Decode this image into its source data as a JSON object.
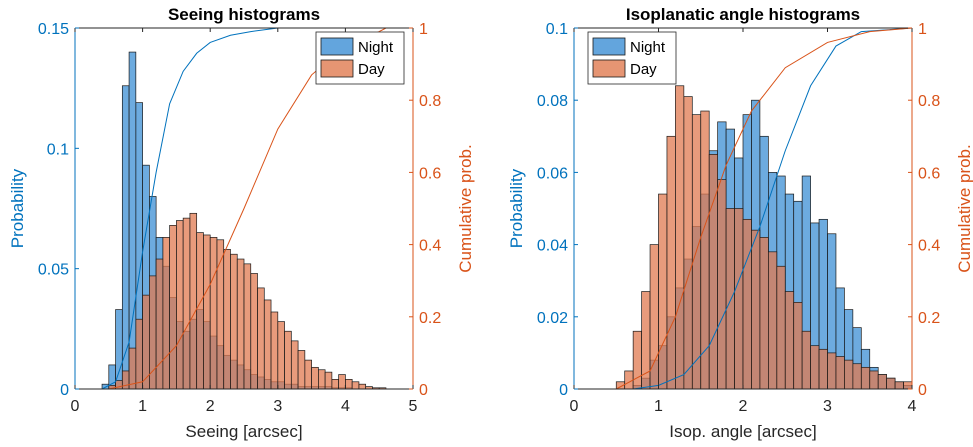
{
  "colors": {
    "night": "#0072BD",
    "day": "#D95319",
    "night_fill": "#3C8FD4",
    "day_fill": "#E07A50",
    "left_axis": "#0072BD",
    "right_axis": "#D95319"
  },
  "chart_data": [
    {
      "type": "bar",
      "title": "Seeing histograms",
      "xlabel": "Seeing [arcsec]",
      "ylabel": "Probability",
      "ylabel_right": "Cumulative prob.",
      "xlim": [
        0,
        5
      ],
      "ylim": [
        0,
        0.15
      ],
      "ylim_right": [
        0,
        1
      ],
      "xticks": [
        "0",
        "1",
        "2",
        "3",
        "4",
        "5"
      ],
      "yticks": [
        "0",
        "0.05",
        "0.1",
        "0.15"
      ],
      "yticks_right": [
        "0",
        "0.2",
        "0.4",
        "0.6",
        "0.8",
        "1"
      ],
      "legend": {
        "placement": "top-right",
        "entries": [
          "Night",
          "Day"
        ]
      },
      "grid": false,
      "bin_width": 0.1,
      "series": [
        {
          "name": "Night",
          "bin_start": 0.4,
          "values": [
            0.002,
            0.01,
            0.033,
            0.126,
            0.14,
            0.119,
            0.093,
            0.08,
            0.063,
            0.051,
            0.038,
            0.028,
            0.024,
            0.029,
            0.033,
            0.028,
            0.022,
            0.018,
            0.014,
            0.012,
            0.01,
            0.008,
            0.006,
            0.005,
            0.004,
            0.003,
            0.003,
            0.002,
            0.002,
            0.001,
            0.001,
            0.001,
            0.001,
            0.001,
            0.0005,
            0.0005,
            0.0005
          ],
          "cumulative": [
            [
              0.4,
              0
            ],
            [
              0.6,
              0.02
            ],
            [
              0.8,
              0.13
            ],
            [
              1.0,
              0.38
            ],
            [
              1.2,
              0.6
            ],
            [
              1.4,
              0.79
            ],
            [
              1.6,
              0.88
            ],
            [
              1.8,
              0.93
            ],
            [
              2.0,
              0.96
            ],
            [
              2.3,
              0.98
            ],
            [
              2.6,
              0.99
            ],
            [
              3.0,
              1.0
            ],
            [
              4.6,
              1.0
            ]
          ]
        },
        {
          "name": "Day",
          "bin_start": 0.5,
          "values": [
            0.0015,
            0.0035,
            0.0075,
            0.017,
            0.029,
            0.039,
            0.047,
            0.054,
            0.063,
            0.068,
            0.07,
            0.071,
            0.073,
            0.065,
            0.064,
            0.063,
            0.062,
            0.058,
            0.056,
            0.054,
            0.052,
            0.048,
            0.042,
            0.037,
            0.032,
            0.028,
            0.024,
            0.02,
            0.016,
            0.012,
            0.009,
            0.008,
            0.007,
            0.004,
            0.006,
            0.004,
            0.003,
            0.002,
            0.001,
            0.0005,
            0.0005
          ],
          "cumulative": [
            [
              0.5,
              0
            ],
            [
              1.0,
              0.02
            ],
            [
              1.5,
              0.12
            ],
            [
              2.0,
              0.29
            ],
            [
              2.5,
              0.5
            ],
            [
              3.0,
              0.72
            ],
            [
              3.5,
              0.87
            ],
            [
              4.0,
              0.95
            ],
            [
              4.5,
              0.99
            ],
            [
              4.6,
              1.0
            ]
          ]
        }
      ]
    },
    {
      "type": "bar",
      "title": "Isoplanatic angle histograms",
      "xlabel": "Isop. angle [arcsec]",
      "ylabel": "Probability",
      "ylabel_right": "Cumulative prob.",
      "xlim": [
        0,
        4
      ],
      "ylim": [
        0,
        0.1
      ],
      "ylim_right": [
        0,
        1
      ],
      "xticks": [
        "0",
        "1",
        "2",
        "3",
        "4"
      ],
      "yticks": [
        "0",
        "0.02",
        "0.04",
        "0.06",
        "0.08",
        "0.1"
      ],
      "yticks_right": [
        "0",
        "0.2",
        "0.4",
        "0.6",
        "0.8",
        "1"
      ],
      "legend": {
        "placement": "top-left",
        "entries": [
          "Night",
          "Day"
        ]
      },
      "grid": false,
      "bin_width": 0.1,
      "series": [
        {
          "name": "Night",
          "bin_start": 0.7,
          "values": [
            0.001,
            0.003,
            0.008,
            0.012,
            0.02,
            0.028,
            0.036,
            0.045,
            0.054,
            0.066,
            0.074,
            0.072,
            0.064,
            0.076,
            0.08,
            0.07,
            0.06,
            0.059,
            0.054,
            0.052,
            0.059,
            0.046,
            0.047,
            0.043,
            0.028,
            0.022,
            0.017,
            0.011,
            0.006,
            0.004,
            0.003,
            0.002,
            0.001
          ],
          "cumulative": [
            [
              0.7,
              0
            ],
            [
              1.0,
              0.01
            ],
            [
              1.3,
              0.04
            ],
            [
              1.6,
              0.12
            ],
            [
              1.9,
              0.27
            ],
            [
              2.2,
              0.45
            ],
            [
              2.5,
              0.66
            ],
            [
              2.8,
              0.84
            ],
            [
              3.1,
              0.95
            ],
            [
              3.4,
              0.99
            ],
            [
              4.0,
              1.0
            ]
          ]
        },
        {
          "name": "Day",
          "bin_start": 0.5,
          "values": [
            0.002,
            0.005,
            0.016,
            0.027,
            0.04,
            0.054,
            0.07,
            0.084,
            0.081,
            0.076,
            0.077,
            0.065,
            0.058,
            0.05,
            0.05,
            0.047,
            0.044,
            0.042,
            0.038,
            0.034,
            0.027,
            0.024,
            0.016,
            0.012,
            0.011,
            0.01,
            0.009,
            0.008,
            0.007,
            0.006,
            0.005,
            0.004,
            0.003,
            0.002,
            0.002
          ],
          "cumulative": [
            [
              0.5,
              0
            ],
            [
              0.9,
              0.05
            ],
            [
              1.2,
              0.2
            ],
            [
              1.5,
              0.42
            ],
            [
              1.8,
              0.62
            ],
            [
              2.1,
              0.77
            ],
            [
              2.5,
              0.89
            ],
            [
              3.0,
              0.96
            ],
            [
              3.5,
              0.99
            ],
            [
              4.0,
              1.0
            ]
          ]
        }
      ]
    }
  ]
}
